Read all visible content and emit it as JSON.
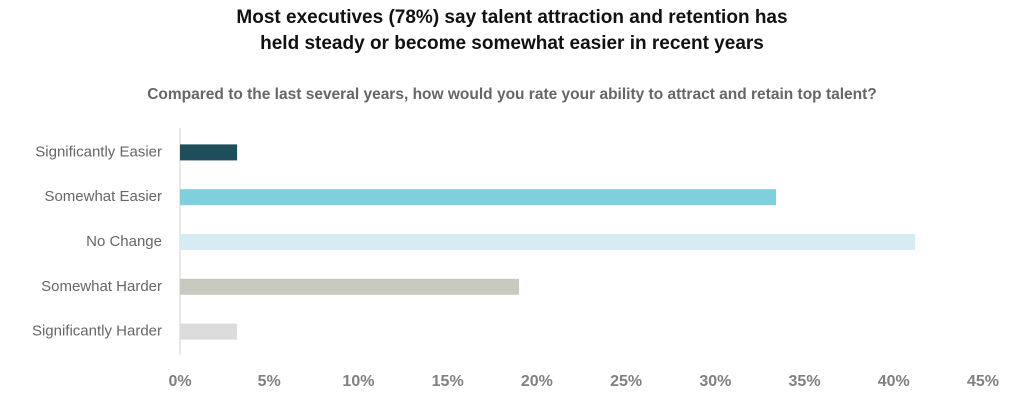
{
  "chart_data": {
    "type": "bar",
    "orientation": "horizontal",
    "title": [
      "Most executives (78%) say talent attraction and retention has",
      "held steady or become somewhat easier in recent years"
    ],
    "subtitle": "Compared to the last several years, how would you rate your ability to attract and retain top talent?",
    "categories": [
      "Significantly Easier",
      "Somewhat Easier",
      "No Change",
      "Somewhat Harder",
      "Significantly Harder"
    ],
    "values": [
      3.2,
      33.4,
      41.2,
      19.0,
      3.2
    ],
    "colors": [
      "#1d4e5a",
      "#7fcfdc",
      "#d6ecf3",
      "#c9c9bf",
      "#dcdcdc"
    ],
    "xlim": [
      0,
      45
    ],
    "xticks": [
      {
        "value": 0,
        "label": "0%"
      },
      {
        "value": 5,
        "label": "5%"
      },
      {
        "value": 10,
        "label": "10%"
      },
      {
        "value": 15,
        "label": "15%"
      },
      {
        "value": 20,
        "label": "20%"
      },
      {
        "value": 25,
        "label": "25%"
      },
      {
        "value": 30,
        "label": "30%"
      },
      {
        "value": 35,
        "label": "35%"
      },
      {
        "value": 40,
        "label": "40%"
      },
      {
        "value": 45,
        "label": "45%"
      }
    ],
    "grid": false
  }
}
